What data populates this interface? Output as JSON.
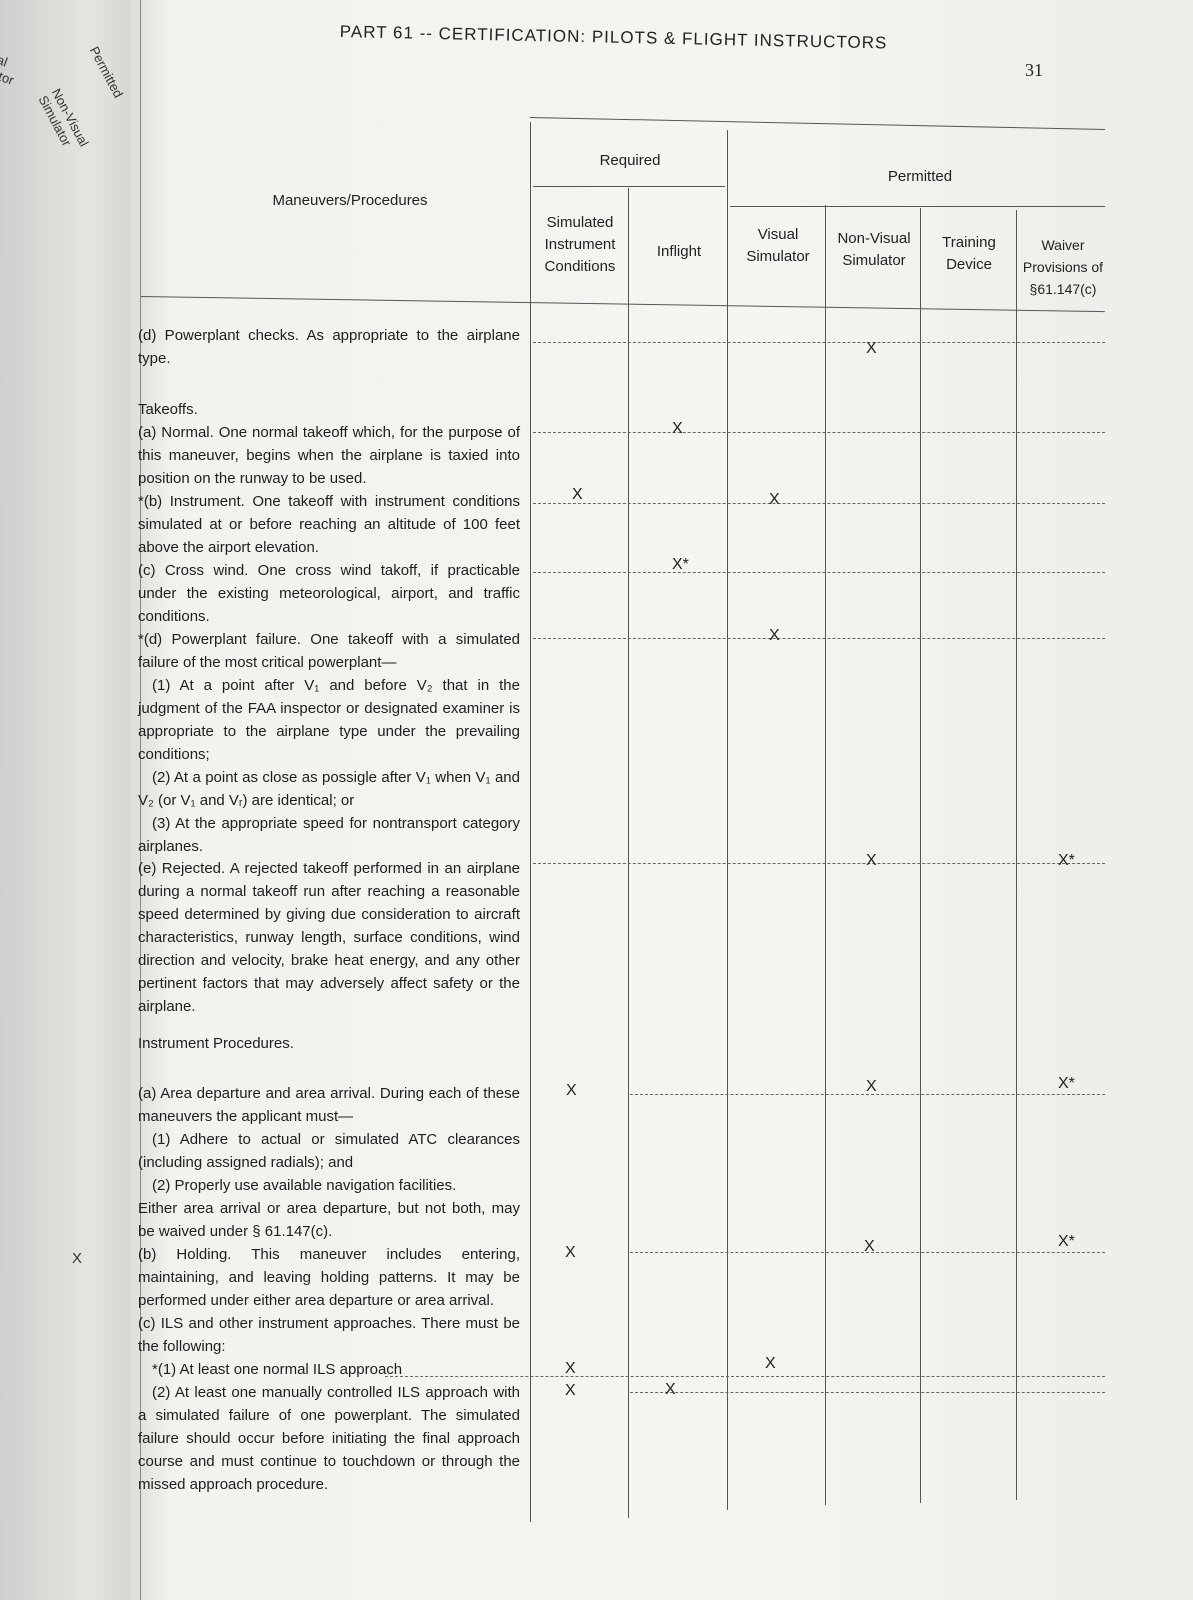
{
  "header": {
    "title": "PART 61 -- CERTIFICATION: PILOTS & FLIGHT INSTRUCTORS",
    "page_number": "31"
  },
  "prev_page": {
    "labels": [
      "Permitted",
      "Non-Visual Simulator",
      "al ator"
    ],
    "mark": "X"
  },
  "table": {
    "col_main": "Maneuvers/Procedures",
    "group_required": "Required",
    "group_permitted": "Permitted",
    "columns": [
      "Simulated Instrument Conditions",
      "Inflight",
      "Visual Simulator",
      "Non-Visual Simulator",
      "Training Device",
      "Waiver Provisions of §61.147(c)"
    ]
  },
  "rows": [
    {
      "text": [
        "(d) Powerplant checks. As appropriate to the airplane type."
      ],
      "marks": {
        "nonvisual": "X"
      }
    },
    {
      "heading": "Takeoffs."
    },
    {
      "text": [
        "(a) Normal. One normal takeoff which, for the purpose of this maneuver, begins when the airplane is taxied into position on the runway to be used."
      ],
      "marks": {
        "inflight": "X"
      }
    },
    {
      "text": [
        "*(b) Instrument. One takeoff with instrument conditions simulated at or before reaching an altitude of 100 feet above the airport elevation."
      ],
      "marks": {
        "sim": "X",
        "visual": "X"
      }
    },
    {
      "text": [
        "(c) Cross wind. One cross wind takoff, if practicable under the existing meteorological, airport, and traffic conditions."
      ],
      "marks": {
        "inflight": "X*"
      }
    },
    {
      "text": [
        "*(d) Powerplant failure. One takeoff with a simulated failure of the most critical powerplant—",
        "(1) At a point after V₁ and before V₂ that in the judgment of the FAA inspector or designated examiner is appropriate to the airplane type under the prevailing conditions;",
        "(2) At a point as close as possigle after V₁ when V₁ and V₂ (or V₁ and Vᵣ) are identical; or",
        "(3) At the appropriate speed for nontransport category airplanes."
      ],
      "marks": {
        "visual": "X"
      }
    },
    {
      "text": [
        "(e) Rejected. A rejected takeoff performed in an airplane during a normal takeoff run after reaching a reasonable speed determined by giving due consideration to aircraft characteristics, runway length, surface conditions, wind direction and velocity, brake heat energy, and any other pertinent factors that may adversely affect safety or the airplane."
      ],
      "marks": {
        "nonvisual": "X",
        "waiver": "X*"
      }
    },
    {
      "heading": "Instrument Procedures."
    },
    {
      "text": [
        "(a) Area departure and area arrival. During each of these maneuvers the applicant must—",
        "(1) Adhere to actual or simulated ATC clearances (including assigned radials); and",
        "(2) Properly use available navigation facilities.",
        "Either area arrival or area departure, but not both, may be waived under § 61.147(c)."
      ],
      "marks": {
        "sim": "X",
        "nonvisual": "X",
        "waiver": "X*"
      }
    },
    {
      "text": [
        "(b) Holding. This maneuver includes entering, maintaining, and leaving holding patterns. It may be performed under either area departure or area arrival."
      ],
      "marks": {
        "sim": "X",
        "nonvisual": "X",
        "waiver": "X*"
      }
    },
    {
      "text": [
        "(c) ILS and other instrument approaches. There must be the following:"
      ]
    },
    {
      "text": [
        "*(1) At least one normal ILS approach"
      ],
      "marks": {
        "sim": "X",
        "visual": "X"
      }
    },
    {
      "text": [
        "(2) At least one manually controlled ILS approach with a simulated failure of one powerplant. The simulated failure should occur before initiating the final approach course and must continue to touchdown or through the missed approach procedure."
      ],
      "marks": {
        "sim": "X",
        "inflight": "X"
      }
    }
  ]
}
